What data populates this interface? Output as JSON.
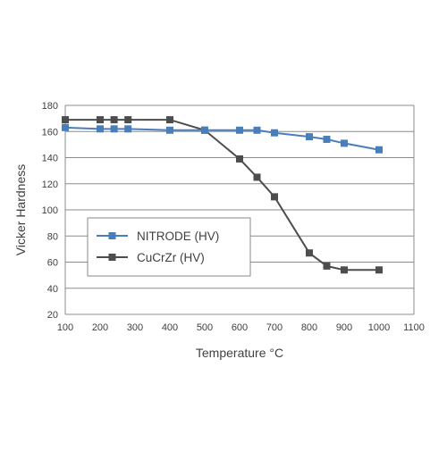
{
  "chart_data": {
    "type": "line",
    "xlabel": "Temperature °C",
    "ylabel": "Vicker Hardness",
    "xlim": [
      100,
      1100
    ],
    "ylim": [
      20,
      180
    ],
    "xticks": [
      100,
      200,
      300,
      400,
      500,
      600,
      700,
      800,
      900,
      1000,
      1100
    ],
    "yticks": [
      20,
      40,
      60,
      80,
      100,
      120,
      140,
      160,
      180
    ],
    "grid": "horizontal",
    "legend_position": "bottom-left",
    "series": [
      {
        "name": "NITRODE (HV)",
        "color": "#4a7ebb",
        "marker": "square",
        "x": [
          100,
          200,
          240,
          280,
          400,
          500,
          600,
          650,
          700,
          800,
          850,
          900,
          1000
        ],
        "y": [
          163,
          162,
          162,
          162,
          161,
          161,
          161,
          161,
          159,
          156,
          154,
          151,
          146
        ]
      },
      {
        "name": "CuCrZr (HV)",
        "color": "#4d4d4d",
        "marker": "square",
        "x": [
          100,
          200,
          240,
          280,
          400,
          500,
          600,
          650,
          700,
          800,
          850,
          900,
          1000
        ],
        "y": [
          169,
          169,
          169,
          169,
          169,
          161,
          139,
          125,
          110,
          67,
          57,
          54,
          54
        ]
      }
    ]
  }
}
